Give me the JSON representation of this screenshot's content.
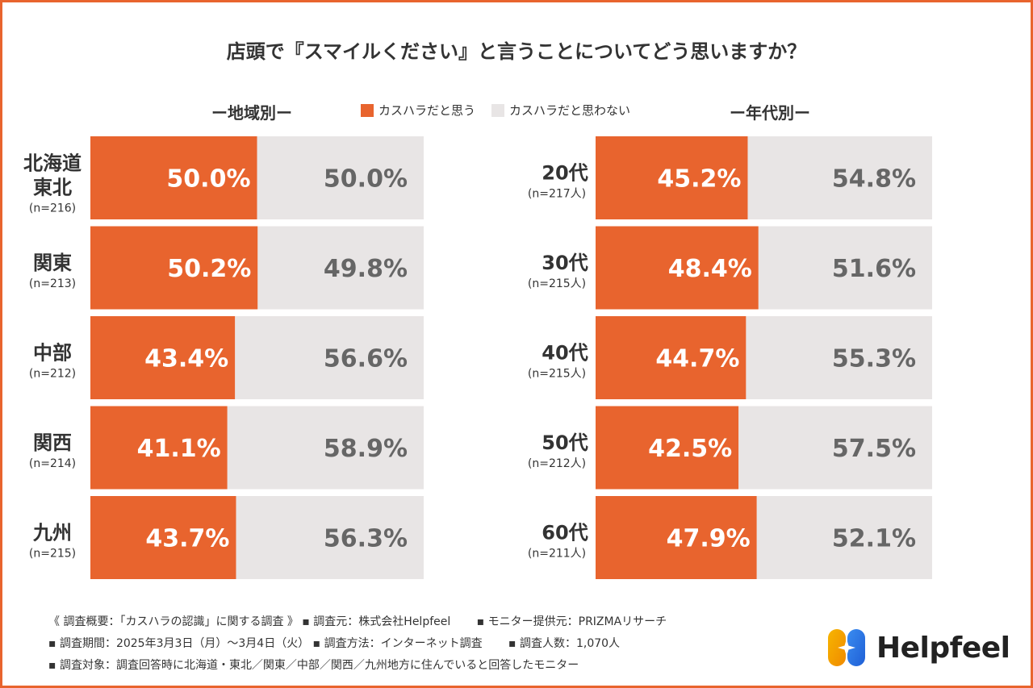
{
  "title": "店頭で『スマイルください』と言うことについてどう思いますか？",
  "section_labels": {
    "region": "ー地域別ー",
    "age": "ー年代別ー"
  },
  "legend": [
    {
      "label": "カスハラだと思う",
      "color": "#e8642e"
    },
    {
      "label": "カスハラだと思わない",
      "color": "#e8e5e5"
    }
  ],
  "colors": {
    "accent": "#e8642e",
    "rest": "#e8e5e5",
    "rest_text": "#666666",
    "accent_text": "#ffffff"
  },
  "chart_data": [
    {
      "type": "bar",
      "stacked": true,
      "orientation": "horizontal",
      "title": "ー地域別ー",
      "categories": [
        "北海道東北",
        "関東",
        "中部",
        "関西",
        "九州"
      ],
      "category_lines": [
        [
          "北海道",
          "東北"
        ],
        [
          "関東"
        ],
        [
          "中部"
        ],
        [
          "関西"
        ],
        [
          "九州"
        ]
      ],
      "sample_sizes": [
        "(n=216)",
        "(n=213)",
        "(n=212)",
        "(n=214)",
        "(n=215)"
      ],
      "series": [
        {
          "name": "カスハラだと思う",
          "values": [
            50.0,
            50.2,
            43.4,
            41.1,
            43.7
          ],
          "labels": [
            "50.0%",
            "50.2%",
            "43.4%",
            "41.1%",
            "43.7%"
          ]
        },
        {
          "name": "カスハラだと思わない",
          "values": [
            50.0,
            49.8,
            56.6,
            58.9,
            56.3
          ],
          "labels": [
            "50.0%",
            "49.8%",
            "56.6%",
            "58.9%",
            "56.3%"
          ]
        }
      ],
      "xlim": [
        0,
        100
      ]
    },
    {
      "type": "bar",
      "stacked": true,
      "orientation": "horizontal",
      "title": "ー年代別ー",
      "categories": [
        "20代",
        "30代",
        "40代",
        "50代",
        "60代"
      ],
      "category_lines": [
        [
          "20代"
        ],
        [
          "30代"
        ],
        [
          "40代"
        ],
        [
          "50代"
        ],
        [
          "60代"
        ]
      ],
      "sample_sizes": [
        "(n=217人)",
        "(n=215人)",
        "(n=215人)",
        "(n=212人)",
        "(n=211人)"
      ],
      "series": [
        {
          "name": "カスハラだと思う",
          "values": [
            45.2,
            48.4,
            44.7,
            42.5,
            47.9
          ],
          "labels": [
            "45.2%",
            "48.4%",
            "44.7%",
            "42.5%",
            "47.9%"
          ]
        },
        {
          "name": "カスハラだと思わない",
          "values": [
            54.8,
            51.6,
            55.3,
            57.5,
            52.1
          ],
          "labels": [
            "54.8%",
            "51.6%",
            "55.3%",
            "57.5%",
            "52.1%"
          ]
        }
      ],
      "xlim": [
        0,
        100
      ]
    }
  ],
  "notes": [
    "《 調査概要：「カスハラの認識」に関する調査 》 ▪ 調査元：株式会社Helpfeel　　 ▪ モニター提供元：PRIZMAリサーチ",
    "▪ 調査期間：2025年3月3日（月）〜3月4日（火） ▪ 調査方法：インターネット調査　　 ▪ 調査人数：1,070人",
    "▪ 調査対象：調査回答時に北海道・東北／関東／中部／関西／九州地方に住んでいると回答したモニター"
  ],
  "logo": {
    "text": "Helpfeel"
  }
}
